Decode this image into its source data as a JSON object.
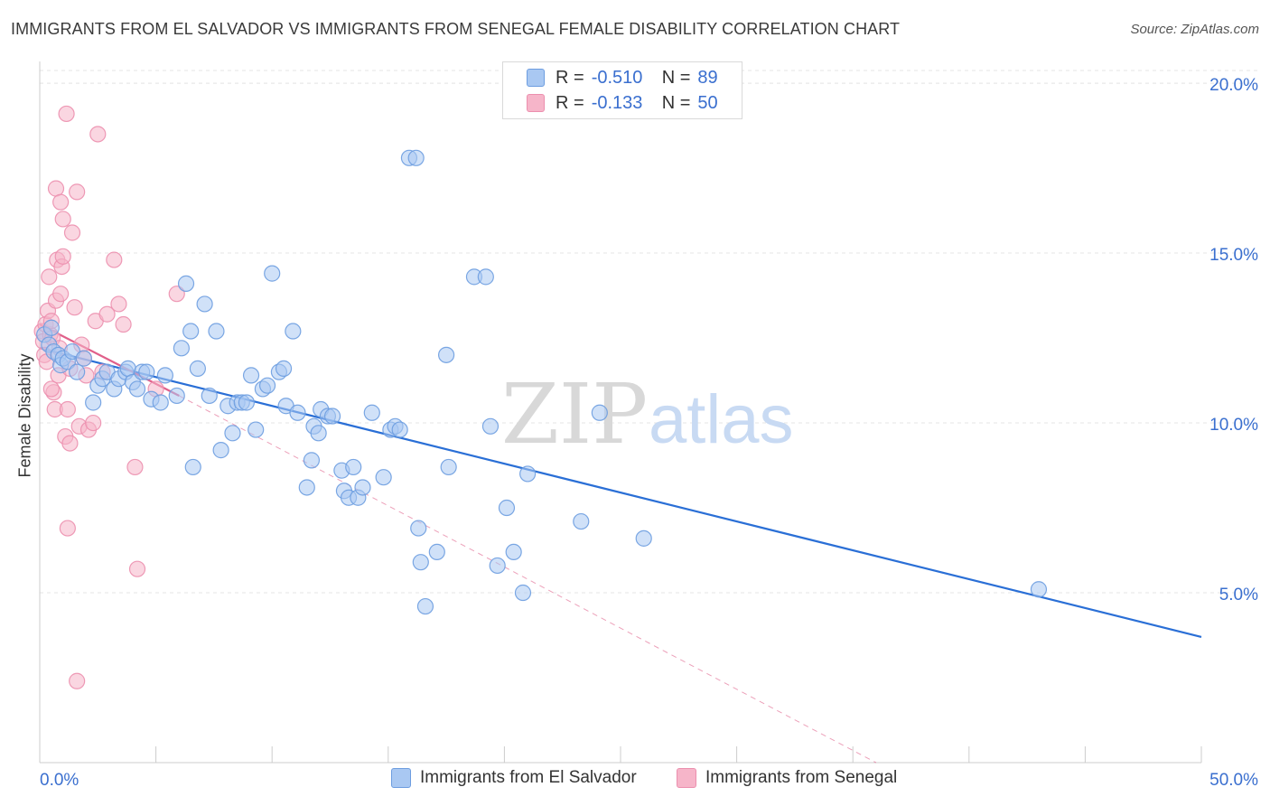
{
  "header": {
    "title": "IMMIGRANTS FROM EL SALVADOR VS IMMIGRANTS FROM SENEGAL FEMALE DISABILITY CORRELATION CHART",
    "source": "Source: ZipAtlas.com"
  },
  "legend": {
    "rows": [
      {
        "r_label": "R =",
        "r_value": "-0.510",
        "n_label": "N =",
        "n_value": "89"
      },
      {
        "r_label": "R =",
        "r_value": "-0.133",
        "n_label": "N =",
        "n_value": "50"
      }
    ]
  },
  "watermark": {
    "zip": "ZIP",
    "atlas": "atlas"
  },
  "colors": {
    "el_salvador_fill": "#a9c8f2",
    "el_salvador_stroke": "#6d9de0",
    "el_salvador_line": "#2a6fd6",
    "senegal_fill": "#f6b5c9",
    "senegal_stroke": "#ec8fae",
    "senegal_line": "#e0608a",
    "axis_label": "#3a6fcf",
    "grid": "#e4e4e4"
  },
  "chart_data": {
    "type": "scatter",
    "title": "IMMIGRANTS FROM EL SALVADOR VS IMMIGRANTS FROM SENEGAL FEMALE DISABILITY CORRELATION CHART",
    "xlabel": "",
    "ylabel": "Female Disability",
    "xlim": [
      0,
      50
    ],
    "ylim": [
      0,
      20.8
    ],
    "x_tick_labels": [
      "0.0%",
      "50.0%"
    ],
    "y_ticks": [
      5,
      10,
      15,
      20
    ],
    "y_tick_labels": [
      "5.0%",
      "10.0%",
      "15.0%",
      "20.0%"
    ],
    "grid": true,
    "legend_position": "top-center",
    "series": [
      {
        "name": "Immigrants from El Salvador",
        "color": "#a9c8f2",
        "points": [
          [
            0.2,
            12.6
          ],
          [
            0.4,
            12.3
          ],
          [
            0.5,
            12.8
          ],
          [
            0.6,
            12.1
          ],
          [
            0.8,
            12.0
          ],
          [
            0.9,
            11.7
          ],
          [
            1.0,
            11.9
          ],
          [
            1.2,
            11.8
          ],
          [
            1.4,
            12.1
          ],
          [
            1.6,
            11.5
          ],
          [
            1.9,
            11.9
          ],
          [
            2.3,
            10.6
          ],
          [
            2.5,
            11.1
          ],
          [
            2.7,
            11.3
          ],
          [
            2.9,
            11.5
          ],
          [
            3.2,
            11.0
          ],
          [
            3.4,
            11.3
          ],
          [
            3.7,
            11.5
          ],
          [
            3.8,
            11.6
          ],
          [
            4.0,
            11.2
          ],
          [
            4.2,
            11.0
          ],
          [
            4.4,
            11.5
          ],
          [
            4.6,
            11.5
          ],
          [
            4.8,
            10.7
          ],
          [
            5.2,
            10.6
          ],
          [
            5.4,
            11.4
          ],
          [
            5.9,
            10.8
          ],
          [
            6.1,
            12.2
          ],
          [
            6.3,
            14.1
          ],
          [
            6.5,
            12.7
          ],
          [
            6.6,
            8.7
          ],
          [
            6.8,
            11.6
          ],
          [
            7.1,
            13.5
          ],
          [
            7.3,
            10.8
          ],
          [
            7.6,
            12.7
          ],
          [
            7.8,
            9.2
          ],
          [
            8.1,
            10.5
          ],
          [
            8.3,
            9.7
          ],
          [
            8.5,
            10.6
          ],
          [
            8.7,
            10.6
          ],
          [
            8.9,
            10.6
          ],
          [
            9.1,
            11.4
          ],
          [
            9.3,
            9.8
          ],
          [
            9.6,
            11.0
          ],
          [
            9.8,
            11.1
          ],
          [
            10.0,
            14.4
          ],
          [
            10.3,
            11.5
          ],
          [
            10.5,
            11.6
          ],
          [
            10.6,
            10.5
          ],
          [
            10.9,
            12.7
          ],
          [
            11.1,
            10.3
          ],
          [
            11.5,
            8.1
          ],
          [
            11.7,
            8.9
          ],
          [
            11.8,
            9.9
          ],
          [
            12.0,
            9.7
          ],
          [
            12.1,
            10.4
          ],
          [
            12.4,
            10.2
          ],
          [
            12.6,
            10.2
          ],
          [
            13.0,
            8.6
          ],
          [
            13.1,
            8.0
          ],
          [
            13.3,
            7.8
          ],
          [
            13.5,
            8.7
          ],
          [
            13.7,
            7.8
          ],
          [
            13.9,
            8.1
          ],
          [
            14.3,
            10.3
          ],
          [
            14.8,
            8.4
          ],
          [
            15.1,
            9.8
          ],
          [
            15.3,
            9.9
          ],
          [
            15.5,
            9.8
          ],
          [
            15.9,
            17.8
          ],
          [
            16.2,
            17.8
          ],
          [
            16.3,
            6.9
          ],
          [
            16.4,
            5.9
          ],
          [
            16.6,
            4.6
          ],
          [
            17.1,
            6.2
          ],
          [
            17.5,
            12.0
          ],
          [
            17.6,
            8.7
          ],
          [
            18.7,
            14.3
          ],
          [
            19.2,
            14.3
          ],
          [
            19.4,
            9.9
          ],
          [
            19.7,
            5.8
          ],
          [
            20.1,
            7.5
          ],
          [
            20.4,
            6.2
          ],
          [
            20.8,
            5.0
          ],
          [
            21.0,
            8.5
          ],
          [
            23.3,
            7.1
          ],
          [
            24.1,
            10.3
          ],
          [
            26.0,
            6.6
          ],
          [
            43.0,
            5.1
          ]
        ],
        "trend": [
          [
            0.0,
            12.2
          ],
          [
            50.0,
            3.7
          ]
        ]
      },
      {
        "name": "Immigrants from Senegal",
        "color": "#f6b5c9",
        "points": [
          [
            0.1,
            12.7
          ],
          [
            0.15,
            12.4
          ],
          [
            0.2,
            12.0
          ],
          [
            0.25,
            12.9
          ],
          [
            0.3,
            11.8
          ],
          [
            0.35,
            13.3
          ],
          [
            0.4,
            14.3
          ],
          [
            0.45,
            12.6
          ],
          [
            0.5,
            13.0
          ],
          [
            0.55,
            12.5
          ],
          [
            0.6,
            10.9
          ],
          [
            0.65,
            10.4
          ],
          [
            0.7,
            13.6
          ],
          [
            0.75,
            14.8
          ],
          [
            0.8,
            11.4
          ],
          [
            0.85,
            12.2
          ],
          [
            0.9,
            13.8
          ],
          [
            0.95,
            14.6
          ],
          [
            1.0,
            14.9
          ],
          [
            0.7,
            16.9
          ],
          [
            0.9,
            16.5
          ],
          [
            1.0,
            16.0
          ],
          [
            1.1,
            9.6
          ],
          [
            1.2,
            10.4
          ],
          [
            1.3,
            9.4
          ],
          [
            1.15,
            19.1
          ],
          [
            1.2,
            6.9
          ],
          [
            1.3,
            11.6
          ],
          [
            1.4,
            15.6
          ],
          [
            1.5,
            13.4
          ],
          [
            1.6,
            16.8
          ],
          [
            1.7,
            9.9
          ],
          [
            1.8,
            12.3
          ],
          [
            1.9,
            11.9
          ],
          [
            2.0,
            11.4
          ],
          [
            2.1,
            9.8
          ],
          [
            2.3,
            10.0
          ],
          [
            2.4,
            13.0
          ],
          [
            2.5,
            18.5
          ],
          [
            2.7,
            11.5
          ],
          [
            2.9,
            13.2
          ],
          [
            3.2,
            14.8
          ],
          [
            3.4,
            13.5
          ],
          [
            3.6,
            12.9
          ],
          [
            4.1,
            8.7
          ],
          [
            4.2,
            5.7
          ],
          [
            5.0,
            11.0
          ],
          [
            5.9,
            13.8
          ],
          [
            1.6,
            2.4
          ],
          [
            0.5,
            11.0
          ]
        ],
        "trend": [
          [
            0.0,
            12.9
          ],
          [
            6.0,
            10.8
          ]
        ],
        "trend_extended": [
          [
            6.0,
            10.8
          ],
          [
            36.0,
            0.0
          ]
        ]
      }
    ]
  }
}
